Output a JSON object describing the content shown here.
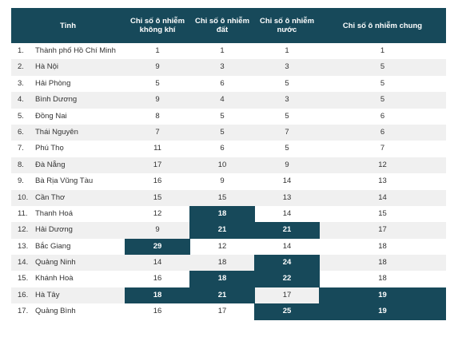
{
  "table": {
    "headers": {
      "province": "Tỉnh",
      "air": "Chỉ số ô nhiễm không khí",
      "land": "Chỉ số ô nhiễm đất",
      "water": "Chỉ số ô nhiễm nước",
      "overall": "Chỉ số ô nhiễm chung"
    },
    "highlight_color": "#17495a",
    "rows": [
      {
        "no": "1.",
        "name": "Thành phố Hồ Chí Minh",
        "air": "1",
        "land": "1",
        "water": "1",
        "overall": "1",
        "hl": []
      },
      {
        "no": "2.",
        "name": "Hà Nội",
        "air": "9",
        "land": "3",
        "water": "3",
        "overall": "5",
        "hl": []
      },
      {
        "no": "3.",
        "name": "Hải Phòng",
        "air": "5",
        "land": "6",
        "water": "5",
        "overall": "5",
        "hl": []
      },
      {
        "no": "4.",
        "name": "Bình Dương",
        "air": "9",
        "land": "4",
        "water": "3",
        "overall": "5",
        "hl": []
      },
      {
        "no": "5.",
        "name": "Đồng Nai",
        "air": "8",
        "land": "5",
        "water": "5",
        "overall": "6",
        "hl": []
      },
      {
        "no": "6.",
        "name": "Thái Nguyên",
        "air": "7",
        "land": "5",
        "water": "7",
        "overall": "6",
        "hl": []
      },
      {
        "no": "7.",
        "name": "Phú Thọ",
        "air": "11",
        "land": "6",
        "water": "5",
        "overall": "7",
        "hl": []
      },
      {
        "no": "8.",
        "name": "Đà Nẵng",
        "air": "17",
        "land": "10",
        "water": "9",
        "overall": "12",
        "hl": []
      },
      {
        "no": "9.",
        "name": "Bà Rịa Vũng Tàu",
        "air": "16",
        "land": "9",
        "water": "14",
        "overall": "13",
        "hl": []
      },
      {
        "no": "10.",
        "name": "Cần Thơ",
        "air": "15",
        "land": "15",
        "water": "13",
        "overall": "14",
        "hl": []
      },
      {
        "no": "11.",
        "name": "Thanh Hoá",
        "air": "12",
        "land": "18",
        "water": "14",
        "overall": "15",
        "hl": [
          "land"
        ]
      },
      {
        "no": "12.",
        "name": "Hải Dương",
        "air": "9",
        "land": "21",
        "water": "21",
        "overall": "17",
        "hl": [
          "land",
          "water"
        ]
      },
      {
        "no": "13.",
        "name": "Bắc Giang",
        "air": "29",
        "land": "12",
        "water": "14",
        "overall": "18",
        "hl": [
          "air"
        ]
      },
      {
        "no": "14.",
        "name": "Quảng Ninh",
        "air": "14",
        "land": "18",
        "water": "24",
        "overall": "18",
        "hl": [
          "water"
        ]
      },
      {
        "no": "15.",
        "name": "Khánh Hoà",
        "air": "16",
        "land": "18",
        "water": "22",
        "overall": "18",
        "hl": [
          "land",
          "water"
        ]
      },
      {
        "no": "16.",
        "name": "Hà Tây",
        "air": "18",
        "land": "21",
        "water": "17",
        "overall": "19",
        "hl": [
          "air",
          "land",
          "overall"
        ]
      },
      {
        "no": "17.",
        "name": "Quảng Bình",
        "air": "16",
        "land": "17",
        "water": "25",
        "overall": "19",
        "hl": [
          "water",
          "overall"
        ]
      }
    ]
  }
}
